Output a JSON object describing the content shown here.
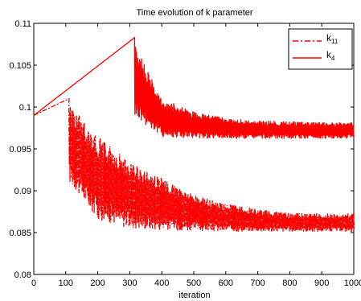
{
  "chart_data": {
    "type": "line",
    "title": "Time evolution of k parameter",
    "xlabel": "iteration",
    "ylabel": "",
    "xlim": [
      0,
      1000
    ],
    "ylim": [
      0.08,
      0.11
    ],
    "x_ticks": [
      0,
      100,
      200,
      300,
      400,
      500,
      600,
      700,
      800,
      900,
      1000
    ],
    "x_tick_labels": [
      "0",
      "100",
      "200",
      "300",
      "400",
      "500",
      "600",
      "700",
      "800",
      "900",
      "1000"
    ],
    "y_ticks": [
      0.08,
      0.085,
      0.09,
      0.095,
      0.1,
      0.105,
      0.11
    ],
    "y_tick_labels": [
      "0.08",
      "0.085",
      "0.09",
      "0.095",
      "0.1",
      "0.105",
      "0.11"
    ],
    "grid": false,
    "legend_position": "top-right",
    "series": [
      {
        "name": "k11",
        "name_main": "k",
        "name_sub": "11",
        "color": "#ff0000",
        "style": "dash-dot",
        "ramp": {
          "x": [
            0,
            110
          ],
          "y": [
            0.099,
            0.101
          ]
        },
        "oscillation": {
          "x_start": 110,
          "x_end": 1000,
          "upper": {
            "x": [
              110,
              200,
              300,
              400,
              500,
              600,
              700,
              800,
              900,
              1000
            ],
            "y": [
              0.1005,
              0.0965,
              0.0935,
              0.0915,
              0.0895,
              0.0885,
              0.0878,
              0.0874,
              0.0873,
              0.0873
            ]
          },
          "lower": {
            "x": [
              110,
              200,
              300,
              400,
              500,
              600,
              700,
              800,
              900,
              1000
            ],
            "y": [
              0.091,
              0.0865,
              0.0855,
              0.0853,
              0.0852,
              0.0851,
              0.0851,
              0.0851,
              0.0851,
              0.0851
            ]
          }
        }
      },
      {
        "name": "k4",
        "name_main": "k",
        "name_sub": "4",
        "color": "#ff0000",
        "style": "solid",
        "ramp": {
          "x": [
            0,
            315
          ],
          "y": [
            0.099,
            0.1083
          ]
        },
        "oscillation": {
          "x_start": 315,
          "x_end": 1000,
          "upper": {
            "x": [
              315,
              400,
              500,
              600,
              700,
              800,
              900,
              1000
            ],
            "y": [
              0.1075,
              0.101,
              0.0995,
              0.0987,
              0.0984,
              0.0983,
              0.0982,
              0.0982
            ]
          },
          "lower": {
            "x": [
              315,
              400,
              500,
              600,
              700,
              800,
              900,
              1000
            ],
            "y": [
              0.0988,
              0.0964,
              0.0962,
              0.0962,
              0.0962,
              0.0962,
              0.0962,
              0.0962
            ]
          }
        }
      }
    ]
  }
}
